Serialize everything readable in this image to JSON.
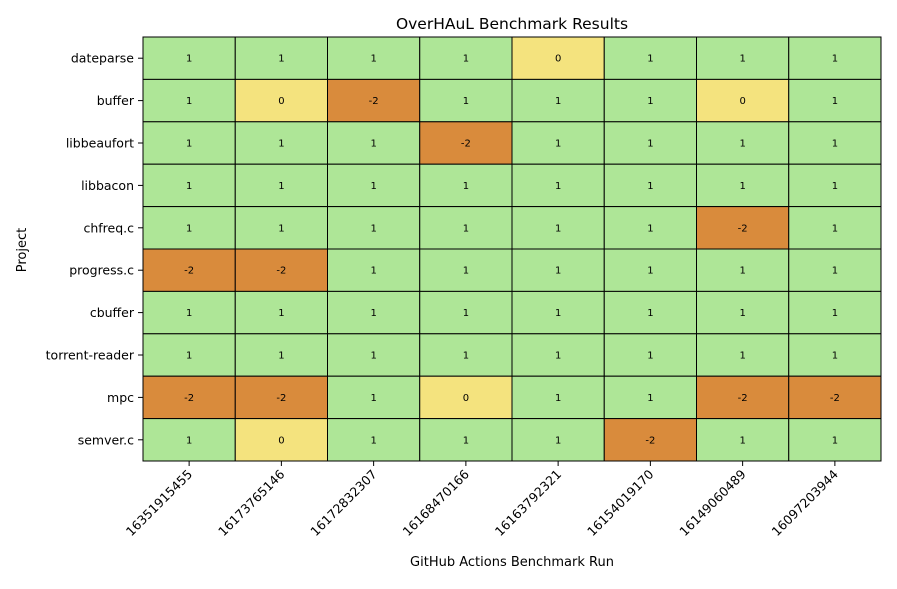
{
  "chart_data": {
    "type": "heatmap",
    "title": "OverHAuL Benchmark Results",
    "xlabel": "GitHub Actions Benchmark Run",
    "ylabel": "Project",
    "x_categories": [
      "16351915455",
      "16173765146",
      "16172832307",
      "16168470166",
      "16163792321",
      "16154019170",
      "16149060489",
      "16097203944"
    ],
    "y_categories": [
      "dateparse",
      "buffer",
      "libbeaufort",
      "libbacon",
      "chfreq.c",
      "progress.c",
      "cbuffer",
      "torrent-reader",
      "mpc",
      "semver.c"
    ],
    "values": [
      [
        1,
        1,
        1,
        1,
        0,
        1,
        1,
        1
      ],
      [
        1,
        0,
        -2,
        1,
        1,
        1,
        0,
        1
      ],
      [
        1,
        1,
        1,
        -2,
        1,
        1,
        1,
        1
      ],
      [
        1,
        1,
        1,
        1,
        1,
        1,
        1,
        1
      ],
      [
        1,
        1,
        1,
        1,
        1,
        1,
        -2,
        1
      ],
      [
        -2,
        -2,
        1,
        1,
        1,
        1,
        1,
        1
      ],
      [
        1,
        1,
        1,
        1,
        1,
        1,
        1,
        1
      ],
      [
        1,
        1,
        1,
        1,
        1,
        1,
        1,
        1
      ],
      [
        -2,
        -2,
        1,
        0,
        1,
        1,
        -2,
        -2
      ],
      [
        1,
        0,
        1,
        1,
        1,
        -2,
        1,
        1
      ]
    ],
    "color_map": {
      "1": "#aee697",
      "0": "#f4e37e",
      "-2": "#d98b3c"
    },
    "grid": true,
    "legend": "none"
  }
}
